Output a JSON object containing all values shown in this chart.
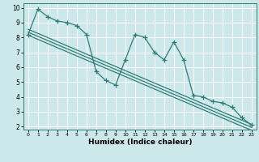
{
  "title": "",
  "xlabel": "Humidex (Indice chaleur)",
  "bg_color": "#cce8ea",
  "grid_color": "#ffffff",
  "line_color": "#2d7d74",
  "xlim": [
    -0.5,
    23.5
  ],
  "ylim": [
    1.8,
    10.3
  ],
  "yticks": [
    2,
    3,
    4,
    5,
    6,
    7,
    8,
    9,
    10
  ],
  "xticks": [
    0,
    1,
    2,
    3,
    4,
    5,
    6,
    7,
    8,
    9,
    10,
    11,
    12,
    13,
    14,
    15,
    16,
    17,
    18,
    19,
    20,
    21,
    22,
    23
  ],
  "data_x": [
    0,
    1,
    2,
    3,
    4,
    5,
    6,
    7,
    8,
    9,
    10,
    11,
    12,
    13,
    14,
    15,
    16,
    17,
    18,
    19,
    20,
    21,
    22,
    23
  ],
  "data_y": [
    8.2,
    9.9,
    9.4,
    9.1,
    9.0,
    8.8,
    8.2,
    5.7,
    5.1,
    4.8,
    6.5,
    8.2,
    8.0,
    7.0,
    6.5,
    7.7,
    6.5,
    4.1,
    4.0,
    3.7,
    3.6,
    3.3,
    2.6,
    2.1
  ],
  "reg_line1": [
    [
      0,
      23
    ],
    [
      8.55,
      2.15
    ]
  ],
  "reg_line2": [
    [
      0,
      23
    ],
    [
      8.35,
      1.95
    ]
  ],
  "reg_line3": [
    [
      0,
      23
    ],
    [
      8.15,
      1.75
    ]
  ]
}
